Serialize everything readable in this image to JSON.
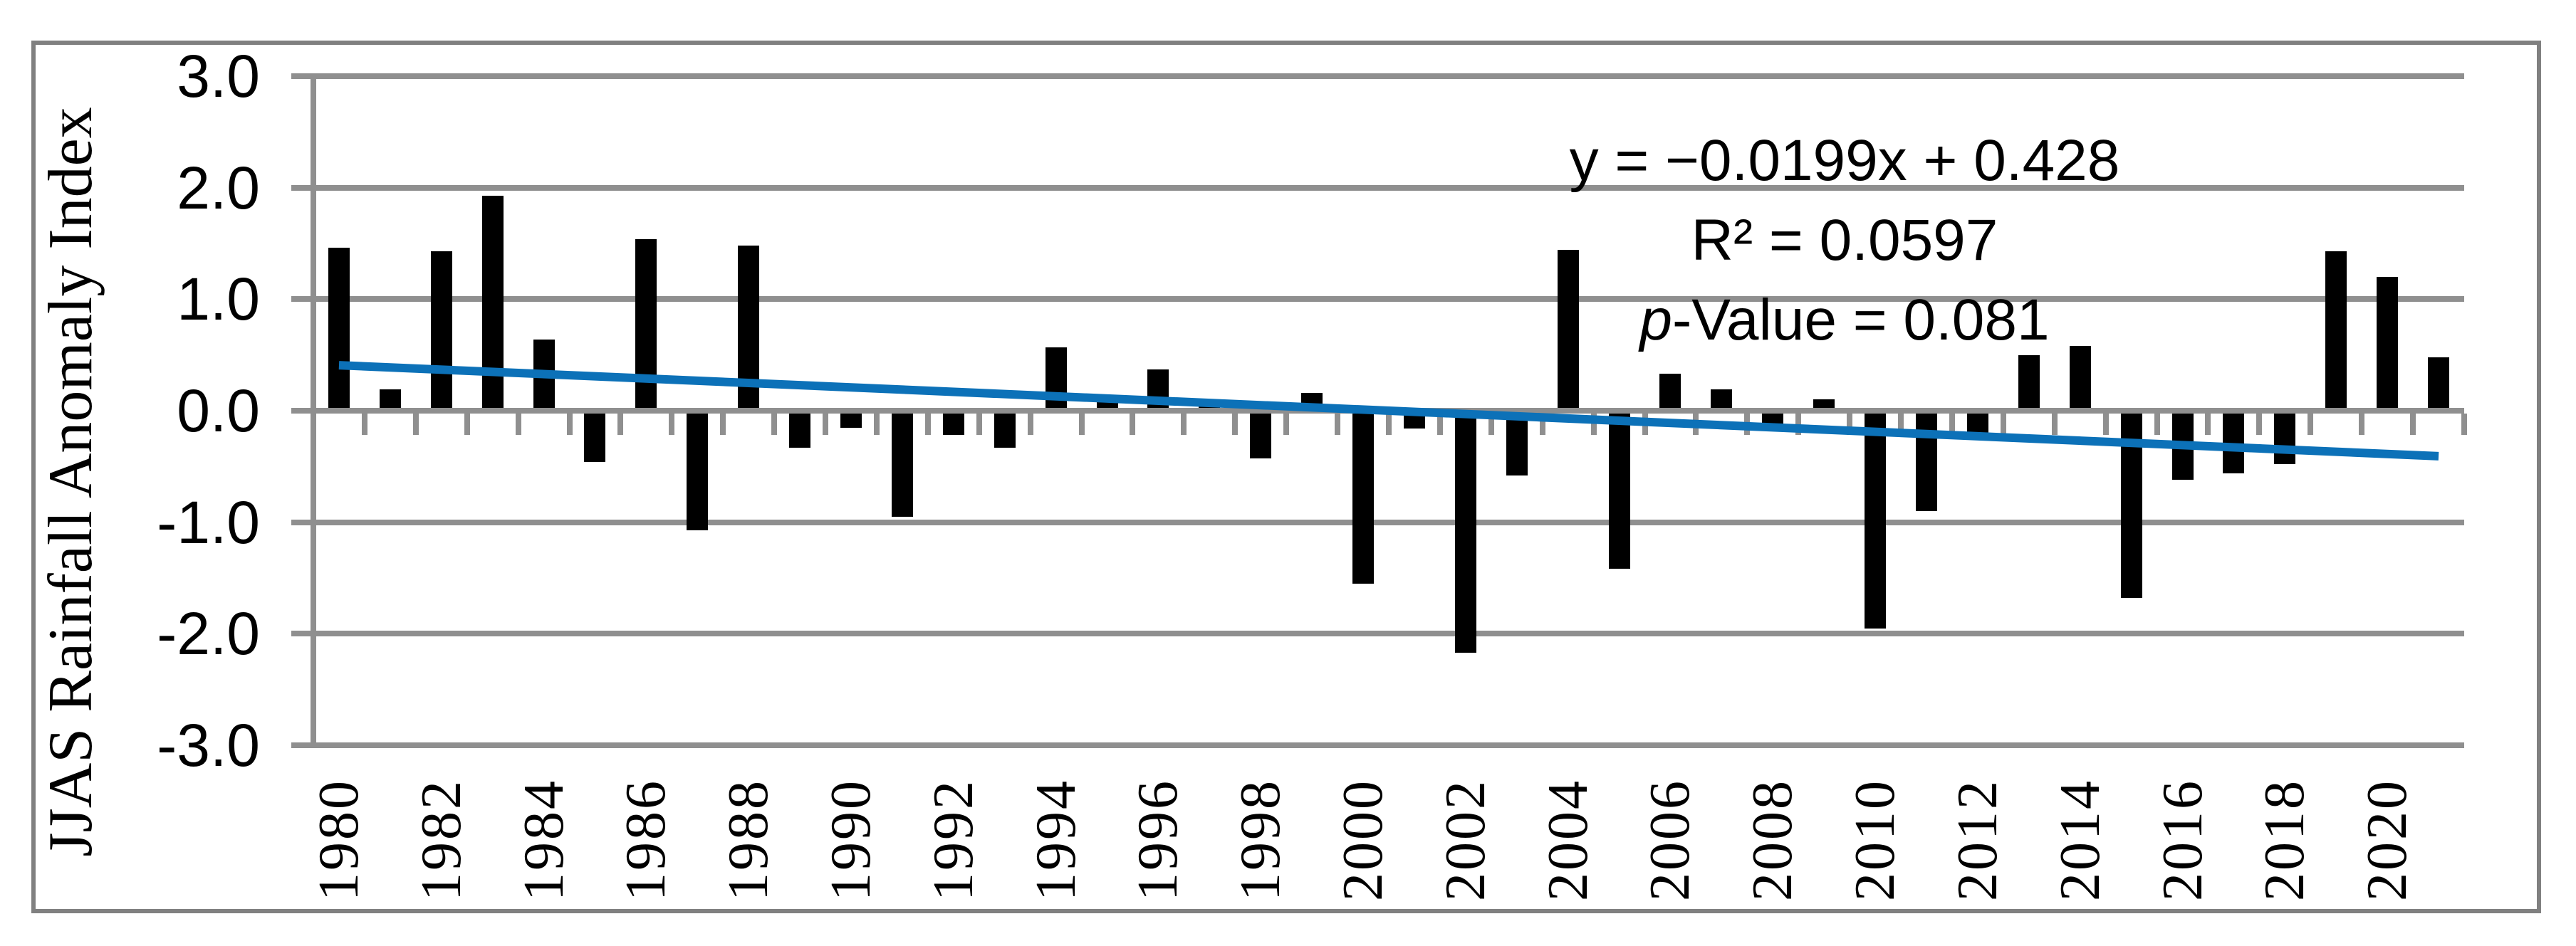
{
  "y_axis": {
    "title": "JJAS Rainfall Anomaly Index",
    "tick_labels": [
      "3.0",
      "2.0",
      "1.0",
      "0.0",
      "-1.0",
      "-2.0",
      "-3.0"
    ],
    "tick_values": [
      3,
      2,
      1,
      0,
      -1,
      -2,
      -3
    ]
  },
  "x_axis": {
    "tick_labels": [
      "1980",
      "1982",
      "1984",
      "1986",
      "1988",
      "1990",
      "1992",
      "1994",
      "1996",
      "1998",
      "2000",
      "2002",
      "2004",
      "2006",
      "2008",
      "2010",
      "2012",
      "2014",
      "2016",
      "2018",
      "2020"
    ]
  },
  "annotation": {
    "equation": "y = −0.0199x + 0.428",
    "r_squared": "R² = 0.0597",
    "p_italic": "p",
    "p_rest": "-Value = 0.081"
  },
  "colors": {
    "bar": "#000000",
    "trendline": "#0c71b8",
    "grid": "#8f8f8f",
    "border": "#808080",
    "text": "#000000"
  },
  "chart_data": {
    "type": "bar",
    "title": "",
    "xlabel": "",
    "ylabel": "JJAS Rainfall Anomaly Index",
    "ylim": [
      -3.0,
      3.0
    ],
    "ytick_step": 1.0,
    "grid": true,
    "legend": "none",
    "categories": [
      1980,
      1981,
      1982,
      1983,
      1984,
      1985,
      1986,
      1987,
      1988,
      1989,
      1990,
      1991,
      1992,
      1993,
      1994,
      1995,
      1996,
      1997,
      1998,
      1999,
      2000,
      2001,
      2002,
      2003,
      2004,
      2005,
      2006,
      2007,
      2008,
      2009,
      2010,
      2011,
      2012,
      2013,
      2014,
      2015,
      2016,
      2017,
      2018,
      2019,
      2020,
      2021
    ],
    "values": [
      1.46,
      0.19,
      1.43,
      1.93,
      0.64,
      -0.46,
      1.54,
      -1.07,
      1.48,
      -0.33,
      -0.15,
      -0.95,
      -0.22,
      -0.33,
      0.57,
      0.13,
      0.37,
      0.08,
      -0.43,
      0.16,
      -1.55,
      -0.16,
      -2.17,
      -0.58,
      1.44,
      -1.42,
      0.33,
      0.19,
      -0.18,
      0.1,
      -1.95,
      -0.9,
      -0.2,
      0.5,
      0.58,
      -1.68,
      -0.62,
      -0.56,
      -0.48,
      1.43,
      1.2,
      0.48
    ],
    "trendline": {
      "slope": -0.0199,
      "intercept": 0.428,
      "x_start_index": 1,
      "x_end_index": 42,
      "y_start": 0.408,
      "y_end": -0.408
    }
  }
}
